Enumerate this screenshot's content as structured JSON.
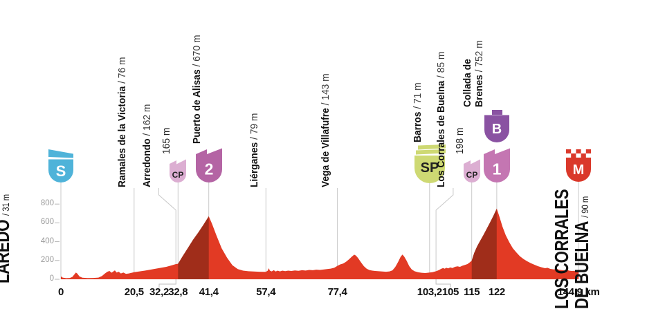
{
  "stage": {
    "start": {
      "name": "LAREDO",
      "altitude": "/ 31 m"
    },
    "finish": {
      "name_line1": "LOS CORRALES",
      "name_line2": "DE BUELNA",
      "altitude": "/ 90 m"
    }
  },
  "colors": {
    "profile_red": "#e23a24",
    "climb_dark_red": "#a02d1a",
    "grid_gray": "#c9c9c9",
    "bracket_gray": "#bdbdbd",
    "axis_text": "#111111",
    "ytick_text": "#9b9b9b"
  },
  "chart_data": {
    "type": "area",
    "title": "",
    "x_unit": "km",
    "y_unit": "m",
    "xlim": [
      0,
      144.9
    ],
    "ylim": [
      0,
      900
    ],
    "yticks": [
      0,
      200,
      400,
      600,
      800
    ],
    "xticks": [
      {
        "km": 0,
        "label": "0"
      },
      {
        "km": 20.5,
        "label": "20,5"
      },
      {
        "km": 32.2,
        "label": "32,2",
        "x": 230
      },
      {
        "km": 32.8,
        "label": "32,8"
      },
      {
        "km": 41.4,
        "label": "41,4"
      },
      {
        "km": 57.4,
        "label": "57,4"
      },
      {
        "km": 77.4,
        "label": "77,4"
      },
      {
        "km": 103.2,
        "label": "103,2"
      },
      {
        "km": 105,
        "label": "105",
        "x": 651
      },
      {
        "km": 115,
        "label": "115"
      },
      {
        "km": 122,
        "label": "122"
      },
      {
        "km": 144.9,
        "label": "144,9 km"
      }
    ],
    "waypoints": [
      {
        "km": 0,
        "badge": "S"
      },
      {
        "km": 20.5,
        "name": "Ramales de la Victoria",
        "alt": "/ 76 m"
      },
      {
        "km": 32.2,
        "name": "Arredondo",
        "alt": "/ 162 m",
        "label_km": 27.4
      },
      {
        "km": 32.8,
        "alt_only": "165 m",
        "badge": "CP"
      },
      {
        "km": 41.4,
        "name": "Puerto de Alisas",
        "alt": "/ 670 m",
        "badge": "2"
      },
      {
        "km": 57.4,
        "name": "Liérganes",
        "alt": "/ 79 m"
      },
      {
        "km": 77.4,
        "name": "Vega de Villafufre",
        "alt": "/ 143 m"
      },
      {
        "km": 103.2,
        "name": "Barros",
        "alt": "/ 71 m",
        "badge": "SP"
      },
      {
        "km": 105,
        "name": "Los Corrales de Buelna",
        "alt": "/ 85 m",
        "label_km": 109.8
      },
      {
        "km": 115,
        "alt_only": "198 m",
        "badge": "CP"
      },
      {
        "km": 122,
        "name": "Collada de",
        "name2": "Brenes",
        "alt": "/ 752 m",
        "badge": "1",
        "badge_top": "B"
      },
      {
        "km": 144.9,
        "badge": "M"
      }
    ],
    "badge_styles": {
      "S": {
        "label": "S",
        "bg": "#4fb3d9",
        "fg": "#ffffff"
      },
      "CP": {
        "label": "CP",
        "bg": "#dcaed2",
        "fg": "#222222"
      },
      "2": {
        "label": "2",
        "bg": "#b464a4",
        "fg": "#ffffff"
      },
      "SP": {
        "label": "SP",
        "bg": "#ced973",
        "fg": "#222222"
      },
      "1": {
        "label": "1",
        "bg": "#c476b2",
        "fg": "#ffffff"
      },
      "B": {
        "label": "B",
        "bg": "#8a52a2",
        "fg": "#ffffff"
      },
      "M": {
        "label": "M",
        "bg": "#da382a",
        "fg": "#ffffff"
      }
    },
    "climb_highlight_segments": [
      [
        32.8,
        41.4
      ],
      [
        115,
        122
      ]
    ],
    "profile": [
      [
        0,
        31
      ],
      [
        0.5,
        18
      ],
      [
        1.5,
        12
      ],
      [
        2.5,
        14
      ],
      [
        3.2,
        25
      ],
      [
        4.2,
        72
      ],
      [
        4.6,
        60
      ],
      [
        5.2,
        30
      ],
      [
        6,
        16
      ],
      [
        7.5,
        13
      ],
      [
        9,
        14
      ],
      [
        10.5,
        18
      ],
      [
        11.5,
        35
      ],
      [
        12.3,
        60
      ],
      [
        13,
        80
      ],
      [
        13.6,
        88
      ],
      [
        14.2,
        70
      ],
      [
        15.1,
        95
      ],
      [
        15.6,
        72
      ],
      [
        16.2,
        80
      ],
      [
        16.8,
        62
      ],
      [
        17.5,
        72
      ],
      [
        18.2,
        58
      ],
      [
        19,
        62
      ],
      [
        20.5,
        76
      ],
      [
        22,
        84
      ],
      [
        23.5,
        92
      ],
      [
        25,
        102
      ],
      [
        26.5,
        112
      ],
      [
        28,
        122
      ],
      [
        29.5,
        132
      ],
      [
        31,
        148
      ],
      [
        32.2,
        162
      ],
      [
        32.8,
        165
      ],
      [
        34,
        240
      ],
      [
        35.5,
        330
      ],
      [
        37,
        420
      ],
      [
        38.5,
        500
      ],
      [
        40,
        585
      ],
      [
        41.4,
        670
      ],
      [
        42.3,
        590
      ],
      [
        43.5,
        470
      ],
      [
        45,
        330
      ],
      [
        46.5,
        230
      ],
      [
        48,
        150
      ],
      [
        49.5,
        108
      ],
      [
        51,
        92
      ],
      [
        52.5,
        85
      ],
      [
        54,
        82
      ],
      [
        55.5,
        80
      ],
      [
        57.4,
        79
      ],
      [
        57.9,
        92
      ],
      [
        58.2,
        118
      ],
      [
        58.5,
        92
      ],
      [
        59,
        84
      ],
      [
        59.6,
        96
      ],
      [
        60.1,
        82
      ],
      [
        60.7,
        92
      ],
      [
        61.3,
        84
      ],
      [
        62,
        92
      ],
      [
        62.8,
        86
      ],
      [
        63.6,
        92
      ],
      [
        64.5,
        88
      ],
      [
        65.5,
        94
      ],
      [
        66.5,
        90
      ],
      [
        67.5,
        96
      ],
      [
        68.5,
        93
      ],
      [
        69.5,
        99
      ],
      [
        70.5,
        96
      ],
      [
        71.5,
        102
      ],
      [
        72.5,
        99
      ],
      [
        73.5,
        104
      ],
      [
        74.5,
        108
      ],
      [
        75.5,
        113
      ],
      [
        76.5,
        122
      ],
      [
        77.4,
        143
      ],
      [
        78.2,
        158
      ],
      [
        79,
        168
      ],
      [
        79.8,
        185
      ],
      [
        80.6,
        210
      ],
      [
        81.4,
        240
      ],
      [
        82.1,
        262
      ],
      [
        82.6,
        252
      ],
      [
        83.2,
        225
      ],
      [
        84,
        180
      ],
      [
        84.8,
        140
      ],
      [
        85.6,
        112
      ],
      [
        86.4,
        98
      ],
      [
        87.2,
        92
      ],
      [
        88,
        88
      ],
      [
        89,
        85
      ],
      [
        90,
        82
      ],
      [
        91,
        80
      ],
      [
        92,
        84
      ],
      [
        92.8,
        95
      ],
      [
        93.6,
        130
      ],
      [
        94.4,
        185
      ],
      [
        95.1,
        240
      ],
      [
        95.6,
        263
      ],
      [
        96.1,
        242
      ],
      [
        96.8,
        195
      ],
      [
        97.5,
        140
      ],
      [
        98.2,
        105
      ],
      [
        99,
        85
      ],
      [
        100,
        74
      ],
      [
        101,
        69
      ],
      [
        102,
        66
      ],
      [
        103.2,
        71
      ],
      [
        104,
        76
      ],
      [
        105,
        85
      ],
      [
        105.8,
        98
      ],
      [
        106.5,
        112
      ],
      [
        107,
        120
      ],
      [
        107.4,
        112
      ],
      [
        107.9,
        122
      ],
      [
        108.4,
        116
      ],
      [
        109,
        126
      ],
      [
        109.6,
        120
      ],
      [
        110.3,
        132
      ],
      [
        111,
        138
      ],
      [
        111.7,
        132
      ],
      [
        112.4,
        144
      ],
      [
        113.1,
        152
      ],
      [
        113.8,
        162
      ],
      [
        114.4,
        178
      ],
      [
        115,
        198
      ],
      [
        115.7,
        280
      ],
      [
        116.5,
        350
      ],
      [
        117.3,
        405
      ],
      [
        118.2,
        465
      ],
      [
        119.1,
        530
      ],
      [
        120,
        595
      ],
      [
        121,
        670
      ],
      [
        122,
        752
      ],
      [
        122.8,
        660
      ],
      [
        123.6,
        560
      ],
      [
        124.5,
        470
      ],
      [
        125.5,
        395
      ],
      [
        126.5,
        330
      ],
      [
        127.5,
        285
      ],
      [
        128.5,
        245
      ],
      [
        129.5,
        215
      ],
      [
        130.5,
        192
      ],
      [
        131.5,
        172
      ],
      [
        132.5,
        155
      ],
      [
        133.5,
        140
      ],
      [
        134.5,
        128
      ],
      [
        135.5,
        118
      ],
      [
        136.2,
        122
      ],
      [
        137,
        110
      ],
      [
        138,
        105
      ],
      [
        138.8,
        112
      ],
      [
        139.4,
        101
      ],
      [
        140.2,
        97
      ],
      [
        141,
        94
      ],
      [
        141.6,
        103
      ],
      [
        142.2,
        92
      ],
      [
        143,
        88
      ],
      [
        144,
        90
      ],
      [
        144.9,
        90
      ]
    ]
  }
}
